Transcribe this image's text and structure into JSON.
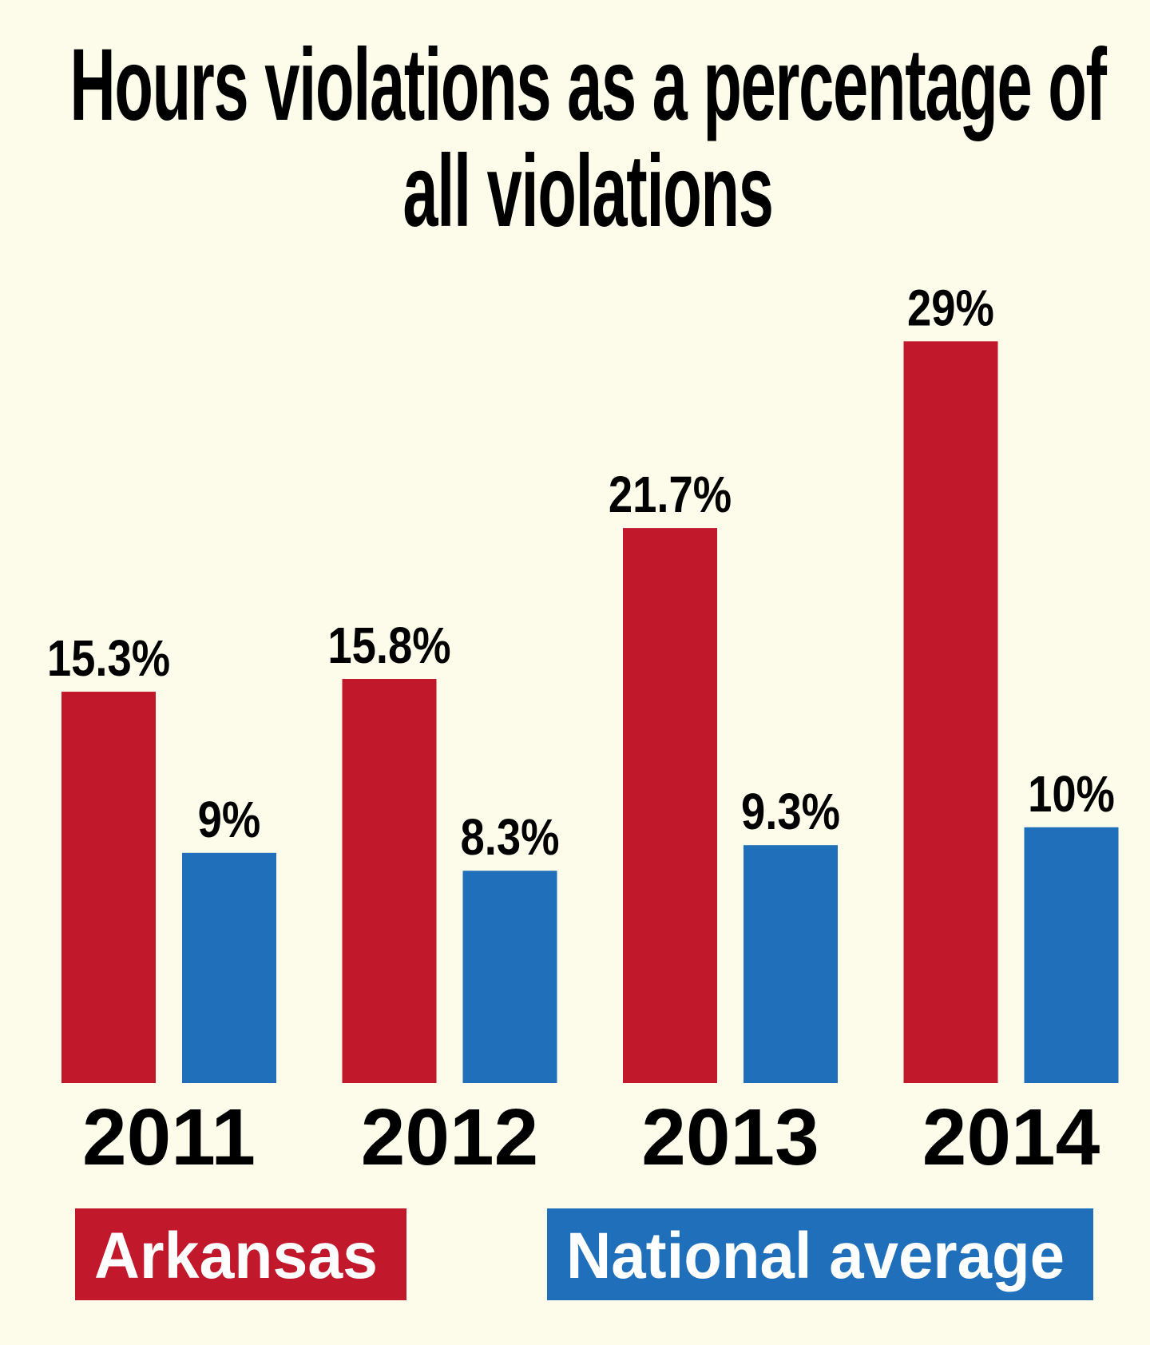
{
  "chart_data": {
    "type": "bar",
    "title": "Hours violations as a percentage of all violations",
    "categories": [
      "2011",
      "2012",
      "2013",
      "2014"
    ],
    "series": [
      {
        "name": "Arkansas",
        "color": "#c1182b",
        "values": [
          15.3,
          15.8,
          21.7,
          29
        ],
        "value_labels": [
          "15.3%",
          "15.8%",
          "21.7%",
          "29%"
        ]
      },
      {
        "name": "National average",
        "color": "#1f6fba",
        "values": [
          9,
          8.3,
          9.3,
          10
        ],
        "value_labels": [
          "9%",
          "8.3%",
          "9.3%",
          "10%"
        ]
      }
    ]
  }
}
